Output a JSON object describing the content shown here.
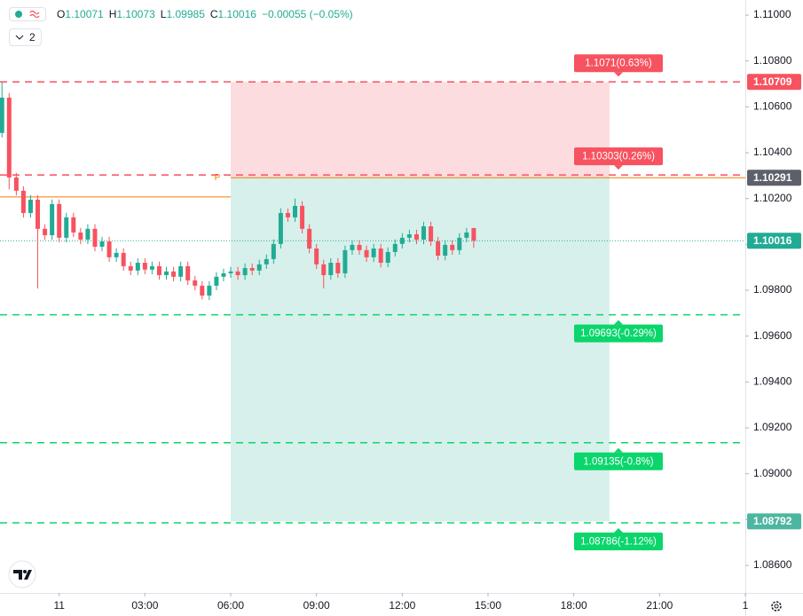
{
  "header": {
    "items": [
      {
        "label": "O",
        "value": 1.10071
      },
      {
        "label": "H",
        "value": 1.10073
      },
      {
        "label": "L",
        "value": 1.09985
      },
      {
        "label": "C",
        "value": 1.10016
      }
    ],
    "change": "−0.00055 (−0.05%)",
    "indicator_count": 2
  },
  "chart_data": {
    "type": "candlestick",
    "up_color": "#22ab94",
    "down_color": "#f7525f",
    "x": [
      -2,
      -1.75,
      -1.5,
      -1.25,
      -1,
      -0.75,
      -0.5,
      -0.25,
      0,
      0.25,
      0.5,
      0.75,
      1,
      1.25,
      1.5,
      1.75,
      2,
      2.25,
      2.5,
      2.75,
      3,
      3.25,
      3.5,
      3.75,
      4,
      4.25,
      4.5,
      4.75,
      5,
      5.25,
      5.5,
      5.75,
      6,
      6.25,
      6.5,
      6.75,
      7,
      7.25,
      7.5,
      7.75,
      8,
      8.25,
      8.5,
      8.75,
      9,
      9.25,
      9.5,
      9.75,
      10,
      10.25,
      10.5,
      10.75,
      11,
      11.25,
      11.5,
      11.75,
      12,
      12.25,
      12.5,
      12.75,
      13,
      13.25,
      13.5,
      13.75,
      14,
      14.25,
      14.5
    ],
    "open": [
      1.10486,
      1.1064,
      1.10292,
      1.10234,
      1.10137,
      1.10195,
      1.10068,
      1.1004,
      1.10176,
      1.10029,
      1.10118,
      1.10052,
      1.10021,
      1.10068,
      1.0999,
      1.10013,
      1.09944,
      1.09963,
      1.09905,
      1.09886,
      1.0992,
      1.0989,
      1.09905,
      1.09866,
      1.09882,
      1.09859,
      1.09905,
      1.09843,
      1.0982,
      1.09777,
      1.0982,
      1.09859,
      1.09874,
      1.09882,
      1.09866,
      1.09897,
      1.09886,
      1.09913,
      1.09936,
      1.10002,
      1.10137,
      1.10118,
      1.10168,
      1.10068,
      1.09982,
      1.09913,
      1.09866,
      1.0992,
      1.09874,
      1.09975,
      1.09998,
      1.09975,
      1.09944,
      1.09982,
      1.0992,
      1.09967,
      1.10002,
      1.10029,
      1.10044,
      1.10021,
      1.10079,
      1.10013,
      1.09951,
      1.09998,
      1.09975,
      1.10029,
      1.10071
    ],
    "high": [
      1.10706,
      1.1066,
      1.10312,
      1.10254,
      1.10215,
      1.10215,
      1.10088,
      1.10196,
      1.10196,
      1.10138,
      1.10138,
      1.10072,
      1.10088,
      1.10088,
      1.10033,
      1.10033,
      1.09983,
      1.09983,
      1.09925,
      1.0994,
      1.0994,
      1.09925,
      1.09925,
      1.09902,
      1.09902,
      1.09925,
      1.09925,
      1.09863,
      1.0984,
      1.0984,
      1.09879,
      1.09894,
      1.09902,
      1.09902,
      1.09917,
      1.09917,
      1.09933,
      1.09956,
      1.10022,
      1.10157,
      1.10157,
      1.102,
      1.10188,
      1.10088,
      1.10002,
      1.09933,
      1.0994,
      1.0994,
      1.09995,
      1.10018,
      1.10018,
      1.09995,
      1.10002,
      1.10002,
      1.09987,
      1.10022,
      1.10049,
      1.10064,
      1.10064,
      1.10099,
      1.10099,
      1.10033,
      1.10018,
      1.10018,
      1.10049,
      1.10072,
      1.10073
    ],
    "low": [
      1.10466,
      1.1024,
      1.10214,
      1.10117,
      1.10117,
      1.09808,
      1.1002,
      1.1002,
      1.10009,
      1.10009,
      1.10032,
      1.10001,
      1.10001,
      1.0997,
      1.0997,
      1.09924,
      1.09924,
      1.09885,
      1.09866,
      1.09866,
      1.0987,
      1.0987,
      1.09846,
      1.09846,
      1.09839,
      1.09839,
      1.09823,
      1.098,
      1.0976,
      1.09757,
      1.098,
      1.09839,
      1.09854,
      1.09846,
      1.09846,
      1.09866,
      1.09866,
      1.09893,
      1.09916,
      1.09982,
      1.10098,
      1.10098,
      1.10048,
      1.09962,
      1.09893,
      1.09808,
      1.09846,
      1.09854,
      1.09854,
      1.09955,
      1.09955,
      1.09924,
      1.09924,
      1.099,
      1.099,
      1.09947,
      1.09982,
      1.10009,
      1.10001,
      1.10001,
      1.09993,
      1.09931,
      1.09931,
      1.09955,
      1.09955,
      1.10009,
      1.09985
    ],
    "close": [
      1.1064,
      1.10292,
      1.10234,
      1.10137,
      1.10195,
      1.10068,
      1.1004,
      1.10176,
      1.10029,
      1.10118,
      1.10052,
      1.10021,
      1.10068,
      1.0999,
      1.10013,
      1.09944,
      1.09963,
      1.09905,
      1.09886,
      1.0992,
      1.0989,
      1.09905,
      1.09866,
      1.09882,
      1.09859,
      1.09905,
      1.09843,
      1.0982,
      1.09777,
      1.0982,
      1.09859,
      1.09874,
      1.09882,
      1.09866,
      1.09897,
      1.09886,
      1.09913,
      1.09936,
      1.10002,
      1.10137,
      1.10118,
      1.10168,
      1.10068,
      1.09982,
      1.09913,
      1.09866,
      1.0992,
      1.09874,
      1.09975,
      1.09998,
      1.09975,
      1.09944,
      1.09982,
      1.0992,
      1.09967,
      1.10002,
      1.10029,
      1.10044,
      1.10021,
      1.10079,
      1.10013,
      1.09951,
      1.09998,
      1.09975,
      1.10029,
      1.10052,
      1.10016
    ],
    "xlim": [
      -2.07,
      24
    ],
    "xticks": [
      {
        "value": 0,
        "label": "11"
      },
      {
        "value": 3,
        "label": "03:00"
      },
      {
        "value": 6,
        "label": "06:00"
      },
      {
        "value": 9,
        "label": "09:00"
      },
      {
        "value": 12,
        "label": "12:00"
      },
      {
        "value": 15,
        "label": "15:00"
      },
      {
        "value": 18,
        "label": "18:00"
      },
      {
        "value": 21,
        "label": "21:00"
      },
      {
        "value": 24,
        "label": "1"
      }
    ],
    "ylim": [
      1.0848,
      1.11066
    ],
    "yticks": [
      {
        "value": 1.086,
        "label": "1.08600"
      },
      {
        "value": 1.088,
        "label": "1.08800"
      },
      {
        "value": 1.09,
        "label": "1.09000"
      },
      {
        "value": 1.092,
        "label": "1.09200"
      },
      {
        "value": 1.094,
        "label": "1.09400"
      },
      {
        "value": 1.096,
        "label": "1.09600"
      },
      {
        "value": 1.098,
        "label": "1.09800"
      },
      {
        "value": 1.1,
        "label": "1.10000"
      },
      {
        "value": 1.102,
        "label": "1.10200"
      },
      {
        "value": 1.104,
        "label": "1.10400"
      },
      {
        "value": 1.106,
        "label": "1.10600"
      },
      {
        "value": 1.108,
        "label": "1.10800"
      },
      {
        "value": 1.11,
        "label": "1.11000"
      }
    ],
    "position": {
      "x_start": 6,
      "x_end": 19.25,
      "top": 1.10709,
      "entry": 1.10291,
      "bottom": 1.08792,
      "marker": "P",
      "color": "#f57c00"
    },
    "pivot_line": {
      "value": 1.10207,
      "x_end": 6,
      "color": "#f57c00"
    },
    "levels": [
      {
        "value": 1.10709,
        "label": "1.1071(0.63%)",
        "color": "#f7525f",
        "label_side": "above"
      },
      {
        "value": 1.10303,
        "label": "1.10303(0.26%)",
        "color": "#f7525f",
        "label_side": "above"
      },
      {
        "value": 1.09693,
        "label": "1.09693(-0.29%)",
        "color": "#0ad66b",
        "label_side": "below"
      },
      {
        "value": 1.09135,
        "label": "1.09135(-0.8%)",
        "color": "#0ad66b",
        "label_side": "below"
      },
      {
        "value": 1.08786,
        "label": "1.08786(-1.12%)",
        "color": "#0ad66b",
        "label_side": "below"
      }
    ],
    "badges": [
      {
        "value": 1.10709,
        "color": "#f7525f"
      },
      {
        "value": 1.10291,
        "color": "#5d606b"
      },
      {
        "value": 1.10016,
        "color": "#22ab94",
        "line": "dotted"
      },
      {
        "value": 1.08792,
        "color": "#4db6a0"
      }
    ]
  }
}
